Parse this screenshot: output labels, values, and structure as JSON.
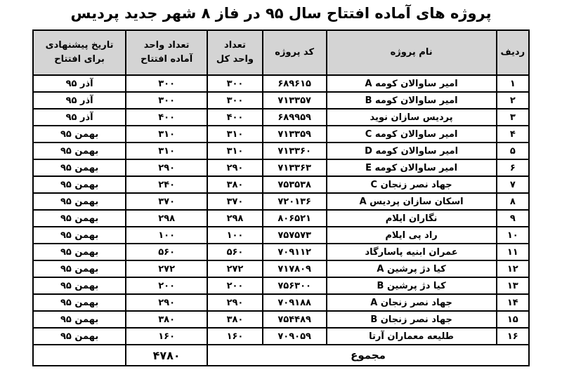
{
  "title": "پروژه های آماده افتتاح سال ۹۵ در فاز ۸ شهر جدید پردیس",
  "colors": {
    "header_bg": "#d4d4d4",
    "border": "#000000",
    "page_bg": "#ffffff"
  },
  "table": {
    "headers": {
      "row": "ردیف",
      "name": "نام پروژه",
      "code": "کد پروژه",
      "total_l1": "تعداد",
      "total_l2": "واحد کل",
      "ready_l1": "تعداد واحد",
      "ready_l2": "آماده افتتاح",
      "date_l1": "تاریخ پیشنهادی",
      "date_l2": "برای افتتاح"
    },
    "rows": [
      {
        "row": "۱",
        "name": "امیر ساوالان کومه A",
        "code": "۶۸۹۶۱۵",
        "total": "۳۰۰",
        "ready": "۳۰۰",
        "date": "آذر ۹۵"
      },
      {
        "row": "۲",
        "name": "امیر ساوالان کومه B",
        "code": "۷۱۳۳۵۷",
        "total": "۳۰۰",
        "ready": "۳۰۰",
        "date": "آذر ۹۵"
      },
      {
        "row": "۳",
        "name": "پردیس سازان نوید",
        "code": "۶۸۹۹۵۹",
        "total": "۴۰۰",
        "ready": "۴۰۰",
        "date": "آذر ۹۵"
      },
      {
        "row": "۴",
        "name": "امیر ساوالان کومه C",
        "code": "۷۱۳۳۵۹",
        "total": "۳۱۰",
        "ready": "۳۱۰",
        "date": "بهمن ۹۵"
      },
      {
        "row": "۵",
        "name": "امیر ساوالان کومه D",
        "code": "۷۱۳۳۶۰",
        "total": "۳۱۰",
        "ready": "۳۱۰",
        "date": "بهمن ۹۵"
      },
      {
        "row": "۶",
        "name": "امیر ساوالان کومه E",
        "code": "۷۱۳۳۶۳",
        "total": "۲۹۰",
        "ready": "۲۹۰",
        "date": "بهمن ۹۵"
      },
      {
        "row": "۷",
        "name": "جهاد نصر زنجان C",
        "code": "۷۵۳۵۳۸",
        "total": "۳۸۰",
        "ready": "۲۴۰",
        "date": "بهمن ۹۵"
      },
      {
        "row": "۸",
        "name": "اسکان سازان پردیس A",
        "code": "۷۲۰۱۳۶",
        "total": "۳۷۰",
        "ready": "۳۷۰",
        "date": "بهمن ۹۵"
      },
      {
        "row": "۹",
        "name": "نگاران ایلام",
        "code": "۸۰۶۵۲۱",
        "total": "۲۹۸",
        "ready": "۲۹۸",
        "date": "بهمن ۹۵"
      },
      {
        "row": "۱۰",
        "name": "راد پی ایلام",
        "code": "۷۵۷۵۷۳",
        "total": "۱۰۰",
        "ready": "۱۰۰",
        "date": "بهمن ۹۵"
      },
      {
        "row": "۱۱",
        "name": "عمران ابنیه پاسارگاد",
        "code": "۷۰۹۱۱۲",
        "total": "۵۶۰",
        "ready": "۵۶۰",
        "date": "بهمن ۹۵"
      },
      {
        "row": "۱۲",
        "name": "کیا دژ پرشین A",
        "code": "۷۱۷۸۰۹",
        "total": "۲۷۲",
        "ready": "۲۷۲",
        "date": "بهمن ۹۵"
      },
      {
        "row": "۱۳",
        "name": "کیا دژ پرشین B",
        "code": "۷۵۶۳۰۰",
        "total": "۲۰۰",
        "ready": "۲۰۰",
        "date": "بهمن ۹۵"
      },
      {
        "row": "۱۴",
        "name": "جهاد نصر زنجان A",
        "code": "۷۰۹۱۸۸",
        "total": "۲۹۰",
        "ready": "۲۹۰",
        "date": "بهمن ۹۵"
      },
      {
        "row": "۱۵",
        "name": "جهاد نصر زنجان B",
        "code": "۷۵۴۴۸۹",
        "total": "۳۸۰",
        "ready": "۳۸۰",
        "date": "بهمن ۹۵"
      },
      {
        "row": "۱۶",
        "name": "طلیعه معماران آرتا",
        "code": "۷۰۹۰۵۹",
        "total": "۱۶۰",
        "ready": "۱۶۰",
        "date": "بهمن ۹۵"
      }
    ],
    "footer": {
      "label": "مجموع",
      "ready_total": "۴۷۸۰",
      "date": ""
    }
  }
}
